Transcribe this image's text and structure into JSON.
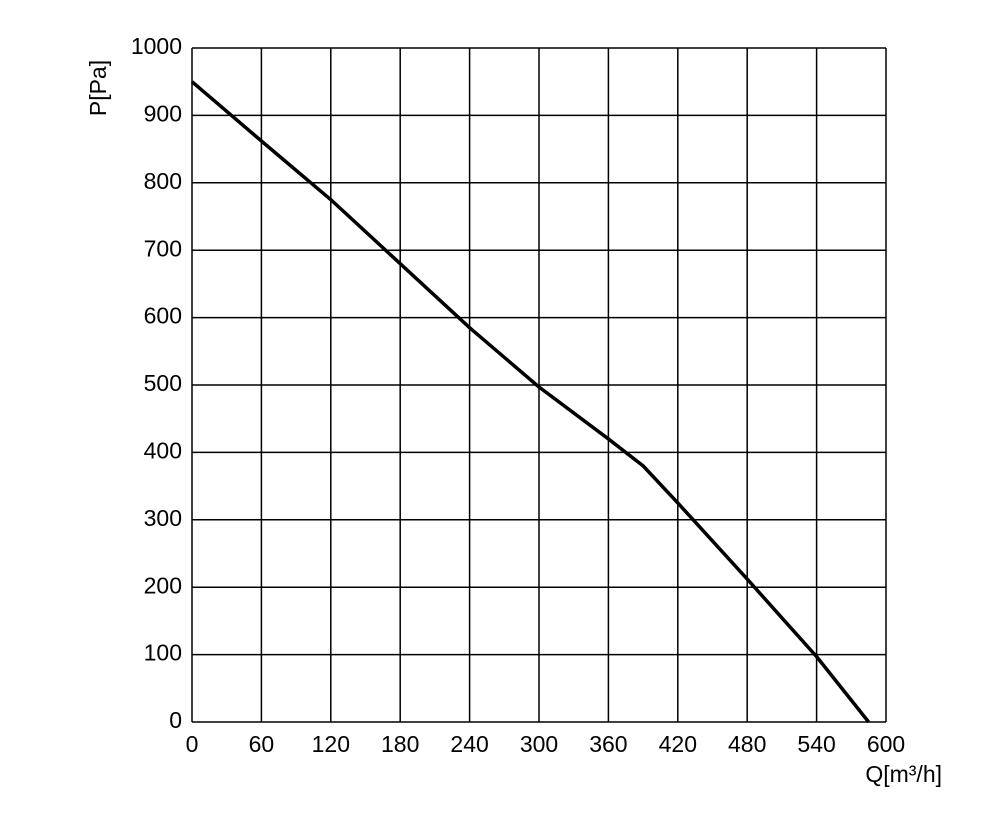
{
  "chart_data": {
    "type": "line",
    "x_label": "Q[m³/h]",
    "y_label": "P[Pa]",
    "xlim": [
      0,
      600
    ],
    "xticks": [
      0,
      60,
      120,
      180,
      240,
      300,
      360,
      420,
      480,
      540,
      600
    ],
    "ylim": [
      0,
      1000
    ],
    "yticks": [
      0,
      100,
      200,
      300,
      400,
      500,
      600,
      700,
      800,
      900,
      1000
    ],
    "grid": true,
    "x": [
      0,
      60,
      120,
      180,
      240,
      300,
      360,
      390,
      420,
      480,
      540,
      585
    ],
    "series": [
      {
        "color": "#000000",
        "values": [
          950,
          862,
          775,
          680,
          585,
          497,
          420,
          380,
          325,
          212,
          97,
          0
        ]
      }
    ]
  }
}
